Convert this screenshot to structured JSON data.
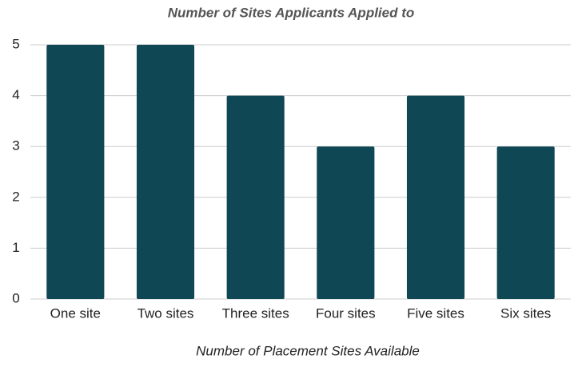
{
  "chart_data": {
    "type": "bar",
    "title": "Number of Sites Applicants Applied to",
    "x_label": "Number of Placement Sites Available",
    "categories": [
      "One site",
      "Two sites",
      "Three sites",
      "Four sites",
      "Five sites",
      "Six sites"
    ],
    "values": [
      5,
      5,
      4,
      3,
      4,
      3
    ],
    "color": "#0f4754",
    "ylim": [
      0,
      5
    ],
    "yticks": [
      0,
      1,
      2,
      3,
      4,
      5
    ],
    "grid": true
  }
}
